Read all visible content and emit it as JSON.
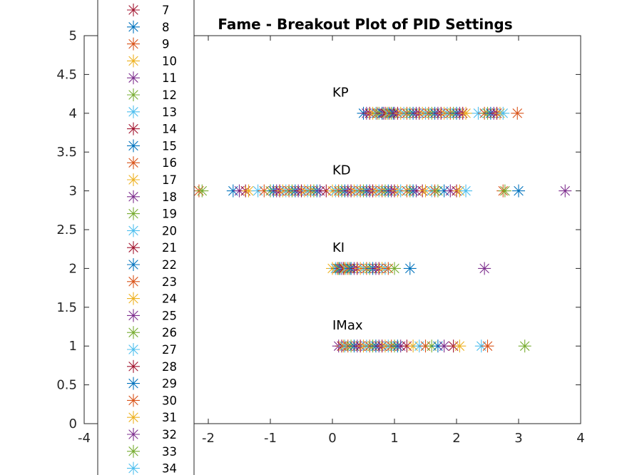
{
  "chart_data": {
    "type": "scatter",
    "title": "Fame - Breakout Plot of PID Settings",
    "xlabel": "",
    "ylabel": "",
    "xlim": [
      -4,
      4
    ],
    "ylim": [
      0,
      5
    ],
    "xticks": [
      "-4",
      "-2",
      "-1",
      "0",
      "1",
      "2",
      "3",
      "4"
    ],
    "xtick_values": [
      -4,
      -2,
      -1,
      0,
      1,
      2,
      3,
      4
    ],
    "yticks": [
      "0",
      "0.5",
      "1",
      "1.5",
      "2",
      "2.5",
      "3",
      "3.5",
      "4",
      "4.5",
      "5"
    ],
    "ytick_values": [
      0,
      0.5,
      1,
      1.5,
      2,
      2.5,
      3,
      3.5,
      4,
      4.5,
      5
    ],
    "grid": false,
    "legend_placement": "left, overlapping plot (clipped)",
    "marker": "asterisk",
    "annotations": [
      {
        "text": "KP",
        "x": 0,
        "y": 4.25
      },
      {
        "text": "KD",
        "x": 0,
        "y": 3.25
      },
      {
        "text": "KI",
        "x": 0,
        "y": 2.25
      },
      {
        "text": "IMax",
        "x": 0,
        "y": 1.25
      }
    ],
    "legend": [
      {
        "label": "7",
        "color": "#A2142F"
      },
      {
        "label": "8",
        "color": "#0072BD"
      },
      {
        "label": "9",
        "color": "#D95319"
      },
      {
        "label": "10",
        "color": "#EDB120"
      },
      {
        "label": "11",
        "color": "#7E2F8E"
      },
      {
        "label": "12",
        "color": "#77AC30"
      },
      {
        "label": "13",
        "color": "#4DBEEE"
      },
      {
        "label": "14",
        "color": "#A2142F"
      },
      {
        "label": "15",
        "color": "#0072BD"
      },
      {
        "label": "16",
        "color": "#D95319"
      },
      {
        "label": "17",
        "color": "#EDB120"
      },
      {
        "label": "18",
        "color": "#7E2F8E"
      },
      {
        "label": "19",
        "color": "#77AC30"
      },
      {
        "label": "20",
        "color": "#4DBEEE"
      },
      {
        "label": "21",
        "color": "#A2142F"
      },
      {
        "label": "22",
        "color": "#0072BD"
      },
      {
        "label": "23",
        "color": "#D95319"
      },
      {
        "label": "24",
        "color": "#EDB120"
      },
      {
        "label": "25",
        "color": "#7E2F8E"
      },
      {
        "label": "26",
        "color": "#77AC30"
      },
      {
        "label": "27",
        "color": "#4DBEEE"
      },
      {
        "label": "28",
        "color": "#A2142F"
      },
      {
        "label": "29",
        "color": "#0072BD"
      },
      {
        "label": "30",
        "color": "#D95319"
      },
      {
        "label": "31",
        "color": "#EDB120"
      },
      {
        "label": "32",
        "color": "#7E2F8E"
      },
      {
        "label": "33",
        "color": "#77AC30"
      },
      {
        "label": "34",
        "color": "#4DBEEE"
      }
    ],
    "series": [
      {
        "y": 4,
        "x": [
          0.5,
          0.55,
          0.6,
          0.65,
          0.7,
          0.72,
          0.75,
          0.8,
          0.82,
          0.85,
          0.88,
          0.9,
          0.92,
          0.95,
          0.98,
          1.0,
          1.05,
          1.1,
          1.15,
          1.2,
          1.25,
          1.3,
          1.35,
          1.4,
          1.45,
          1.5,
          1.55,
          1.6,
          1.65,
          1.7,
          1.75,
          1.8,
          1.85,
          1.9,
          1.95,
          2.0,
          2.05,
          2.1,
          2.15,
          2.35,
          2.45,
          2.5,
          2.55,
          2.6,
          2.65,
          2.7,
          2.75,
          2.98
        ]
      },
      {
        "y": 3,
        "x": [
          -2.15,
          -2.1,
          -1.6,
          -1.5,
          -1.4,
          -1.35,
          -1.2,
          -1.1,
          -1.0,
          -0.95,
          -0.9,
          -0.85,
          -0.8,
          -0.75,
          -0.7,
          -0.65,
          -0.6,
          -0.55,
          -0.5,
          -0.45,
          -0.4,
          -0.35,
          -0.3,
          -0.25,
          -0.2,
          -0.1,
          0.0,
          0.05,
          0.1,
          0.15,
          0.2,
          0.25,
          0.3,
          0.35,
          0.4,
          0.45,
          0.5,
          0.55,
          0.6,
          0.65,
          0.7,
          0.75,
          0.8,
          0.85,
          0.9,
          0.95,
          1.0,
          1.05,
          1.1,
          1.2,
          1.25,
          1.3,
          1.35,
          1.45,
          1.5,
          1.6,
          1.65,
          1.7,
          1.8,
          1.9,
          2.0,
          2.05,
          2.15,
          2.75,
          2.78,
          3.0,
          3.75
        ]
      },
      {
        "y": 2,
        "x": [
          0.0,
          0.05,
          0.08,
          0.1,
          0.12,
          0.15,
          0.18,
          0.2,
          0.22,
          0.25,
          0.28,
          0.3,
          0.35,
          0.4,
          0.45,
          0.5,
          0.55,
          0.6,
          0.65,
          0.7,
          0.75,
          0.8,
          0.85,
          0.9,
          1.0,
          1.25,
          2.45
        ]
      },
      {
        "y": 1,
        "x": [
          0.1,
          0.15,
          0.18,
          0.2,
          0.25,
          0.3,
          0.35,
          0.4,
          0.45,
          0.5,
          0.55,
          0.6,
          0.65,
          0.7,
          0.75,
          0.8,
          0.85,
          0.9,
          0.95,
          1.0,
          1.05,
          1.1,
          1.2,
          1.3,
          1.4,
          1.5,
          1.6,
          1.7,
          1.8,
          1.95,
          2.05,
          2.4,
          2.5,
          3.1
        ]
      }
    ]
  }
}
